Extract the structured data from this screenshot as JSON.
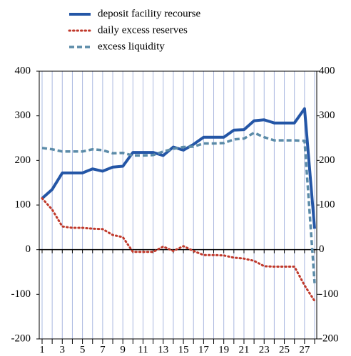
{
  "chart_data": {
    "type": "line",
    "categories": [
      "1",
      null,
      "3",
      null,
      "5",
      null,
      "7",
      null,
      "9",
      null,
      "11",
      null,
      "13",
      null,
      "15",
      null,
      "17",
      null,
      "19",
      null,
      "21",
      null,
      "23",
      null,
      "25",
      null,
      "27",
      null
    ],
    "series": [
      {
        "name": "deposit facility recourse",
        "color": "#2456a6",
        "style": "solid",
        "values": [
          115,
          135,
          172,
          172,
          172,
          181,
          176,
          185,
          187,
          218,
          218,
          218,
          211,
          230,
          223,
          236,
          252,
          252,
          252,
          268,
          269,
          289,
          291,
          284,
          284,
          284,
          316,
          47
        ]
      },
      {
        "name": "daily excess reserves",
        "color": "#c0392b",
        "style": "dotted",
        "values": [
          115,
          90,
          52,
          49,
          49,
          47,
          46,
          33,
          28,
          -5,
          -5,
          -5,
          7,
          -3,
          8,
          -3,
          -12,
          -12,
          -13,
          -18,
          -20,
          -25,
          -37,
          -38,
          -38,
          -38,
          -80,
          -115
        ]
      },
      {
        "name": "excess liquidity",
        "color": "#5b8ba8",
        "style": "dashed",
        "values": [
          228,
          225,
          220,
          220,
          220,
          225,
          223,
          216,
          217,
          211,
          211,
          212,
          220,
          226,
          230,
          231,
          238,
          238,
          239,
          247,
          249,
          262,
          252,
          245,
          245,
          245,
          244,
          -75
        ]
      }
    ],
    "ylim": [
      -200,
      400
    ],
    "yticks": [
      -200,
      -100,
      0,
      100,
      200,
      300,
      400
    ],
    "grid": true
  }
}
